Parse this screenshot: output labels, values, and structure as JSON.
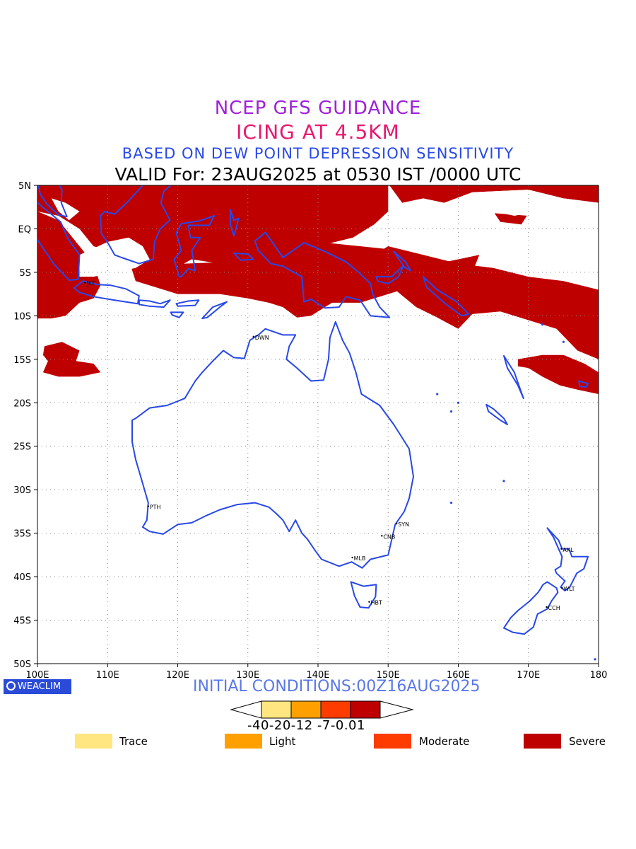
{
  "header": {
    "line1": "NCEP GFS GUIDANCE",
    "line2": "ICING AT 4.5KM",
    "line3": "BASED ON DEW POINT DEPRESSION SENSITIVITY",
    "line4": "VALID For: 23AUG2025 at 0530 IST /0000 UTC"
  },
  "map": {
    "lon_labels": [
      "100E",
      "110E",
      "120E",
      "130E",
      "140E",
      "150E",
      "160E",
      "170E",
      "180"
    ],
    "lat_labels": [
      "5N",
      "EQ",
      "5S",
      "10S",
      "15S",
      "20S",
      "25S",
      "30S",
      "35S",
      "40S",
      "45S",
      "50S"
    ],
    "cities": [
      {
        "name": "JKT",
        "lon": 106.8,
        "lat": -6.2
      },
      {
        "name": "DWN",
        "lon": 130.8,
        "lat": -12.4
      },
      {
        "name": "PTH",
        "lon": 115.8,
        "lat": -31.9
      },
      {
        "name": "SYN",
        "lon": 151.2,
        "lat": -33.9
      },
      {
        "name": "CNB",
        "lon": 149.1,
        "lat": -35.3
      },
      {
        "name": "MLB",
        "lon": 144.9,
        "lat": -37.8
      },
      {
        "name": "HBT",
        "lon": 147.3,
        "lat": -42.9
      },
      {
        "name": "AKL",
        "lon": 174.7,
        "lat": -36.8
      },
      {
        "name": "WLT",
        "lon": 174.8,
        "lat": -41.3
      },
      {
        "name": "CCH",
        "lon": 172.6,
        "lat": -43.5
      }
    ],
    "colors": {
      "coast": "#2848e8",
      "severe": "#bf0000",
      "grid": "#888888"
    }
  },
  "footer": {
    "badge": "WEACLIM",
    "initial": "INITIAL CONDITIONS:00Z16AUG2025",
    "colorbar_values": "-40-20-12 -7-0.01",
    "colorbar_colors": [
      "#ffe680",
      "#ffa000",
      "#ff3c00",
      "#bf0000"
    ]
  },
  "legend": [
    {
      "label": "Trace",
      "color": "#ffe680"
    },
    {
      "label": "Light",
      "color": "#ffa000"
    },
    {
      "label": "Moderate",
      "color": "#ff3c00"
    },
    {
      "label": "Severe",
      "color": "#bf0000"
    }
  ]
}
